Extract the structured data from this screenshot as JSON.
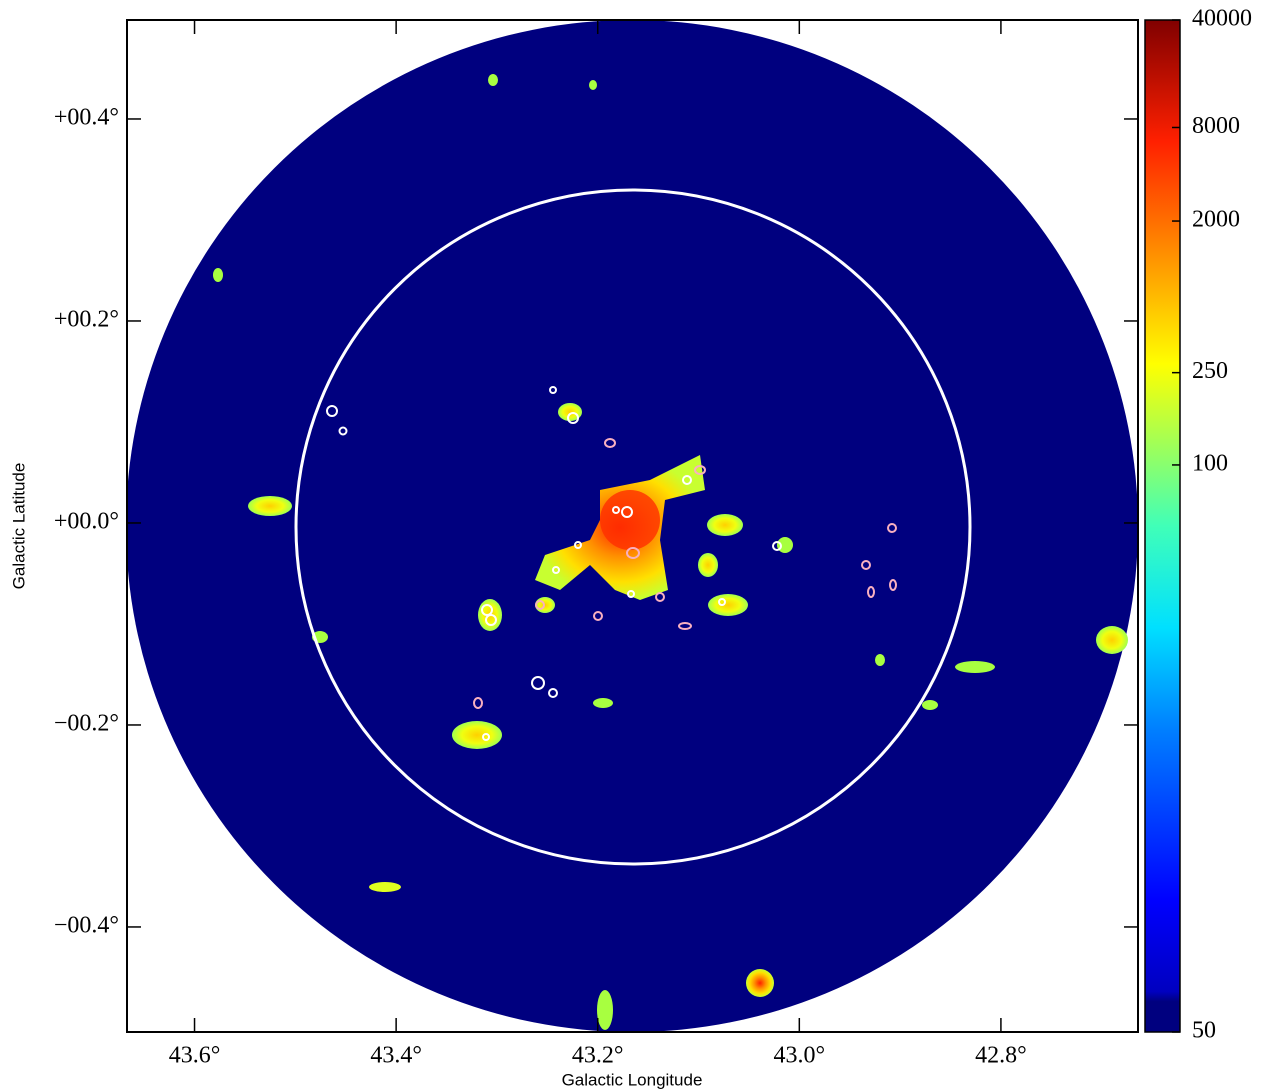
{
  "chart_data": {
    "type": "image",
    "x_label": "Galactic Longitude",
    "y_label": "Galactic Latitude",
    "xlim": [
      43.667,
      42.664
    ],
    "ylim": [
      -0.504,
      0.498
    ],
    "xticks": [
      {
        "value": 43.6,
        "label": "43.6°"
      },
      {
        "value": 43.4,
        "label": "43.4°"
      },
      {
        "value": 43.2,
        "label": "43.2°"
      },
      {
        "value": 43.0,
        "label": "43.0°"
      },
      {
        "value": 42.8,
        "label": "42.8°"
      }
    ],
    "yticks": [
      {
        "value": 0.4,
        "label": "+00.4°"
      },
      {
        "value": 0.2,
        "label": "+00.2°"
      },
      {
        "value": 0.0,
        "label": "+00.0°"
      },
      {
        "value": -0.2,
        "label": "−00.2°"
      },
      {
        "value": -0.4,
        "label": "−00.4°"
      }
    ],
    "colorbar": {
      "lim": [
        50,
        40000
      ],
      "ticks": [
        50,
        100,
        250,
        2000,
        8000,
        40000
      ],
      "colormap": "jet"
    }
  }
}
